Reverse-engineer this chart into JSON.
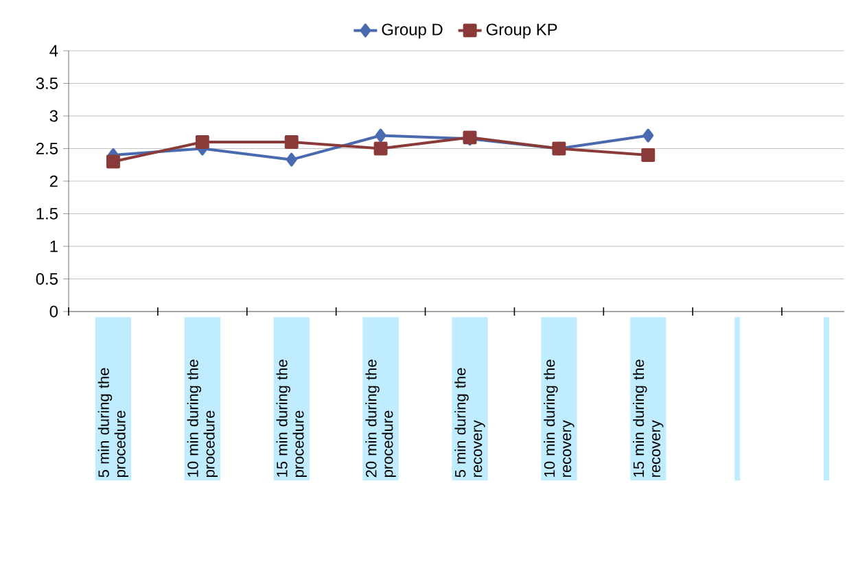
{
  "chart_data": {
    "type": "line",
    "categories": [
      "5 min during the procedure",
      "10 min during the procedure",
      "15 min during the procedure",
      "20 min during the procedure",
      "5 min during the recovery",
      "10 min during the recovery",
      "15 min during the recovery",
      null,
      null
    ],
    "series": [
      {
        "name": "Group D",
        "color": "#4a6ab0",
        "marker": "diamond",
        "values": [
          2.4,
          2.5,
          2.33,
          2.7,
          2.65,
          2.5,
          2.7,
          null,
          null
        ]
      },
      {
        "name": "Group KP",
        "color": "#8b3a3a",
        "marker": "square",
        "values": [
          2.3,
          2.6,
          2.6,
          2.5,
          2.67,
          2.5,
          2.4,
          null,
          null
        ]
      }
    ],
    "ylim": [
      0,
      4
    ],
    "yticks": [
      0,
      0.5,
      1,
      1.5,
      2,
      2.5,
      3,
      3.5,
      4
    ],
    "grid": "y",
    "legend": "top",
    "line_style": "solid"
  }
}
